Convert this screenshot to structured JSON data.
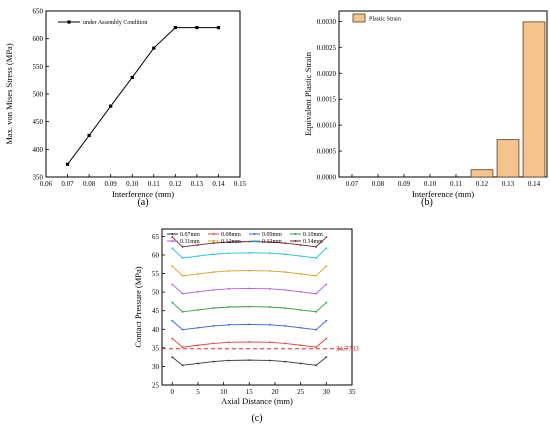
{
  "colors": {
    "axis": "#000000",
    "bar_fill": "#f5c48e",
    "bar_stroke": "#5a3c1e",
    "threshold_line": "#e02a2a"
  },
  "chart_data": [
    {
      "type": "line",
      "panel": "(a)",
      "series": [
        {
          "name": "under Assembly Condition",
          "x": [
            0.07,
            0.08,
            0.09,
            0.1,
            0.11,
            0.12,
            0.13,
            0.14
          ],
          "y": [
            373,
            425,
            478,
            530,
            583,
            620,
            620,
            620
          ]
        }
      ],
      "xlabel": "Interference (mm)",
      "ylabel": "Max. von Mises Stress (MPa)",
      "xlim": [
        0.06,
        0.15
      ],
      "ylim": [
        350,
        650
      ],
      "xticks": [
        "0.06",
        "0.07",
        "0.08",
        "0.09",
        "0.10",
        "0.11",
        "0.12",
        "0.13",
        "0.14",
        "0.15"
      ],
      "yticks": [
        "350",
        "400",
        "450",
        "500",
        "550",
        "600",
        "650"
      ],
      "legend": "top-left",
      "grid": false
    },
    {
      "type": "bar",
      "panel": "(b)",
      "categories": [
        "0.07",
        "0.08",
        "0.09",
        "0.10",
        "0.11",
        "0.12",
        "0.13",
        "0.14"
      ],
      "series": [
        {
          "name": "Plastic Strain",
          "values": [
            0,
            0,
            0,
            0,
            0,
            0.00014,
            0.00072,
            0.00299
          ]
        }
      ],
      "xlabel": "Interference (mm)",
      "ylabel": "Equivalent Plastic Strain",
      "ylim": [
        0,
        0.0032
      ],
      "yticks": [
        "0.0000",
        "0.0005",
        "0.0010",
        "0.0015",
        "0.0020",
        "0.0025",
        "0.0030"
      ],
      "legend": "top-left",
      "grid": false
    },
    {
      "type": "line",
      "panel": "(c)",
      "xlabel": "Axial Distance (mm)",
      "ylabel": "Contact Pressure (MPa)",
      "xlim": [
        -2,
        35
      ],
      "ylim": [
        25,
        67
      ],
      "xticks": [
        "0",
        "5",
        "10",
        "15",
        "20",
        "25",
        "30",
        "35"
      ],
      "yticks": [
        "25",
        "30",
        "35",
        "40",
        "45",
        "50",
        "55",
        "60",
        "65"
      ],
      "threshold": {
        "value": 34.7733,
        "label": "34.7733"
      },
      "legend": "top",
      "grid": false,
      "x": [
        0,
        2,
        5,
        8,
        11,
        15,
        19,
        22,
        25,
        28,
        30
      ],
      "series": [
        {
          "name": "0.07mm",
          "color": "#333333",
          "y": [
            32.5,
            30.3,
            30.8,
            31.3,
            31.6,
            31.7,
            31.6,
            31.3,
            30.8,
            30.3,
            32.5
          ]
        },
        {
          "name": "0.08mm",
          "color": "#e8413a",
          "y": [
            37.5,
            35.2,
            35.7,
            36.2,
            36.5,
            36.6,
            36.5,
            36.2,
            35.7,
            35.2,
            37.5
          ]
        },
        {
          "name": "0.09mm",
          "color": "#3a5fd9",
          "y": [
            42.3,
            39.9,
            40.4,
            40.9,
            41.2,
            41.3,
            41.2,
            40.9,
            40.4,
            39.9,
            42.3
          ]
        },
        {
          "name": "0.10mm",
          "color": "#2e9e3e",
          "y": [
            47.2,
            44.7,
            45.2,
            45.7,
            46.0,
            46.1,
            46.0,
            45.7,
            45.2,
            44.7,
            47.2
          ]
        },
        {
          "name": "0.11mm",
          "color": "#b05fd6",
          "y": [
            52.1,
            49.6,
            50.1,
            50.6,
            50.9,
            51.0,
            50.9,
            50.6,
            50.1,
            49.6,
            52.1
          ]
        },
        {
          "name": "0.12mm",
          "color": "#d6a321",
          "y": [
            57.0,
            54.4,
            54.9,
            55.4,
            55.7,
            55.8,
            55.7,
            55.4,
            54.9,
            54.4,
            57.0
          ]
        },
        {
          "name": "0.13mm",
          "color": "#26c3d6",
          "y": [
            61.8,
            59.2,
            59.7,
            60.2,
            60.5,
            60.6,
            60.5,
            60.2,
            59.7,
            59.2,
            61.8
          ]
        },
        {
          "name": "0.14mm",
          "color": "#7a1f2d",
          "y": [
            64.8,
            62.2,
            62.7,
            63.2,
            63.5,
            63.6,
            63.5,
            63.2,
            62.7,
            62.2,
            64.8
          ]
        }
      ]
    }
  ]
}
